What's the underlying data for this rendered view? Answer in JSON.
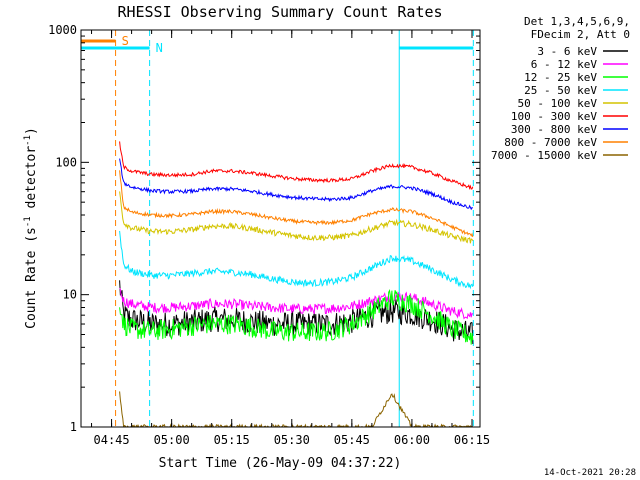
{
  "chart_data": {
    "type": "line",
    "title": "RHESSI Observing Summary Count Rates",
    "xlabel": "Start Time (26-May-09 04:37:22)",
    "ylabel": {
      "prefix": "Count Rate (s",
      "sup1": "-1",
      "middle": " detector",
      "sup2": "-1",
      "suffix": ")"
    },
    "yscale": "log",
    "ylim": [
      1,
      1000
    ],
    "xlim": [
      "04:37:22",
      "06:17:00"
    ],
    "x_ticks": [
      "04:45",
      "05:00",
      "05:15",
      "05:30",
      "05:45",
      "06:00",
      "06:15"
    ],
    "y_ticks": [
      "1",
      "10",
      "100",
      "1000"
    ],
    "legend": {
      "placement": "right",
      "header": [
        "Det 1,3,4,5,6,9,",
        "FDecim 2, Att 0"
      ]
    },
    "flags": [
      {
        "label": "S",
        "color": "#ff8000",
        "ranges": [
          [
            "04:37:22",
            "04:46:00"
          ]
        ]
      },
      {
        "label": "N",
        "color": "#00e5ff",
        "ranges": [
          [
            "04:37:22",
            "04:54:30"
          ],
          [
            "05:56:50",
            "06:15:20"
          ]
        ]
      }
    ],
    "vertical_markers": [
      {
        "time": "04:46:00",
        "color": "#ff8000",
        "style": "dashed"
      },
      {
        "time": "04:54:30",
        "color": "#00e5ff",
        "style": "dashed"
      },
      {
        "time": "05:56:50",
        "color": "#00e5ff",
        "style": "solid"
      },
      {
        "time": "06:15:20",
        "color": "#00e5ff",
        "style": "dashed"
      }
    ],
    "data_start": "04:47:00",
    "data_end": "06:15:20",
    "times": [
      "04:47",
      "04:48",
      "04:50",
      "04:55",
      "05:00",
      "05:05",
      "05:10",
      "05:15",
      "05:20",
      "05:25",
      "05:30",
      "05:35",
      "05:40",
      "05:45",
      "05:50",
      "05:55",
      "06:00",
      "06:05",
      "06:10",
      "06:15"
    ],
    "series": [
      {
        "name": "3 - 6 keV",
        "color": "#000000",
        "values": [
          12,
          7,
          6.5,
          6,
          6,
          6.2,
          6.5,
          6.5,
          6.2,
          6,
          6,
          6,
          6,
          6.3,
          7,
          7.5,
          7.2,
          6.5,
          5.5,
          5
        ]
      },
      {
        "name": "6 - 12 keV",
        "color": "#ff00ff",
        "values": [
          11,
          9,
          8.5,
          8,
          8,
          8.2,
          8.5,
          8.5,
          8.2,
          8,
          7.8,
          7.8,
          7.9,
          8.2,
          9,
          9.8,
          9.5,
          8.5,
          7.5,
          7
        ]
      },
      {
        "name": "12 - 25 keV",
        "color": "#00ff00",
        "values": [
          9,
          6,
          5.5,
          5.3,
          5.5,
          5.8,
          6,
          6,
          5.7,
          5.3,
          5.2,
          5.2,
          5.3,
          6,
          7.5,
          9.5,
          8.5,
          7,
          5.5,
          4.8
        ]
      },
      {
        "name": "25 - 50 keV",
        "color": "#00e5ff",
        "values": [
          30,
          17,
          15,
          14,
          14,
          14.5,
          15,
          14.8,
          14.2,
          13.2,
          12.5,
          12.2,
          12.5,
          13.5,
          16,
          19,
          18,
          15.5,
          13,
          11.5
        ]
      },
      {
        "name": "50 - 100 keV",
        "color": "#d4c400",
        "values": [
          60,
          35,
          32,
          30,
          30,
          31,
          33,
          33,
          31.5,
          29.5,
          28,
          27,
          27,
          28,
          31.5,
          35,
          34,
          31,
          27.5,
          25.5
        ]
      },
      {
        "name": "100 - 300 keV",
        "color": "#ff0000",
        "values": [
          140,
          92,
          86,
          81,
          80,
          81,
          86,
          86,
          83,
          79,
          75.5,
          73.5,
          73,
          75,
          86,
          95,
          92,
          83,
          72,
          64
        ]
      },
      {
        "name": "300 - 800 keV",
        "color": "#0000ff",
        "values": [
          105,
          70,
          65,
          61,
          60,
          60.5,
          63,
          63,
          60.5,
          57,
          54.5,
          53,
          52.5,
          54,
          61,
          66,
          64,
          58,
          50,
          45
        ]
      },
      {
        "name": "800 - 7000 keV",
        "color": "#ff8000",
        "values": [
          85,
          46,
          42,
          40,
          39.5,
          40.5,
          42.5,
          42.5,
          40.5,
          38,
          36,
          35,
          35,
          36.5,
          41,
          44,
          42.5,
          38,
          32.5,
          28
        ]
      },
      {
        "name": "7000 - 15000 keV",
        "color": "#8b6400",
        "values": [
          1.8,
          1,
          1,
          1,
          1,
          1,
          1,
          1,
          1,
          1,
          1,
          1,
          1,
          1,
          1,
          1.8,
          1,
          1,
          1,
          1
        ]
      }
    ],
    "timestamp": "14-Oct-2021 20:28"
  }
}
